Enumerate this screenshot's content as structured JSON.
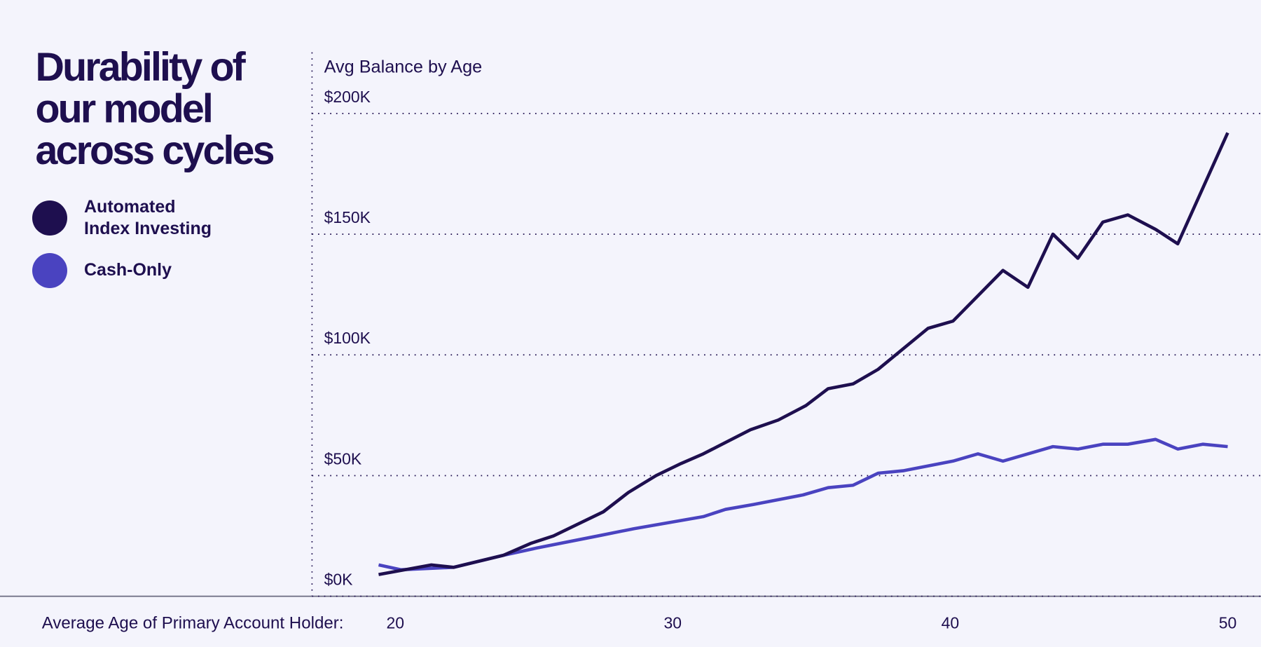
{
  "chart_data": {
    "type": "line",
    "title": [
      "Durability of",
      "our model",
      "across cycles"
    ],
    "y_label": "Avg Balance by Age",
    "x_label": "Average Age of Primary Account Holder:",
    "xlim": [
      17,
      51.2
    ],
    "ylim": [
      0,
      227000
    ],
    "xticks": [
      20,
      30,
      40,
      50
    ],
    "yticks": [
      {
        "value": 0,
        "label": "$0K"
      },
      {
        "value": 50000,
        "label": "$50K"
      },
      {
        "value": 100000,
        "label": "$100K"
      },
      {
        "value": 150000,
        "label": "$150K"
      },
      {
        "value": 200000,
        "label": "$200K"
      }
    ],
    "grid": true,
    "series": [
      {
        "name": "Automated Index Investing",
        "color": "#1e0f4f",
        "x": [
          19.4,
          21.3,
          22.1,
          23.9,
          24.9,
          25.7,
          26.6,
          27.5,
          28.4,
          29.4,
          30.3,
          31.1,
          32.8,
          33.8,
          34.8,
          35.6,
          36.5,
          37.4,
          39.2,
          40.1,
          41.9,
          42.8,
          43.7,
          44.6,
          45.5,
          46.4,
          47.4,
          48.2,
          50
        ],
        "values": [
          9000,
          13000,
          12000,
          17000,
          22000,
          25000,
          30000,
          35000,
          43000,
          50000,
          55000,
          59000,
          69000,
          73000,
          79000,
          86000,
          88000,
          94000,
          111000,
          114000,
          135000,
          128000,
          150000,
          140000,
          155000,
          158000,
          152000,
          146000,
          192000
        ]
      },
      {
        "name": "Cash-Only",
        "color": "#4a43c0",
        "x": [
          19.4,
          20.2,
          22.1,
          23.9,
          25.1,
          27.3,
          28.6,
          31.1,
          31.9,
          32.9,
          34.7,
          35.6,
          36.5,
          37.4,
          38.3,
          40.1,
          41.0,
          41.9,
          43.7,
          44.6,
          45.5,
          46.4,
          47.4,
          48.2,
          49.1,
          50
        ],
        "values": [
          13000,
          11000,
          12000,
          17000,
          20000,
          25000,
          28000,
          33000,
          36000,
          38000,
          42000,
          45000,
          46000,
          51000,
          52000,
          56000,
          59000,
          56000,
          62000,
          61000,
          63000,
          63000,
          65000,
          61000,
          63000,
          62000
        ]
      }
    ]
  }
}
